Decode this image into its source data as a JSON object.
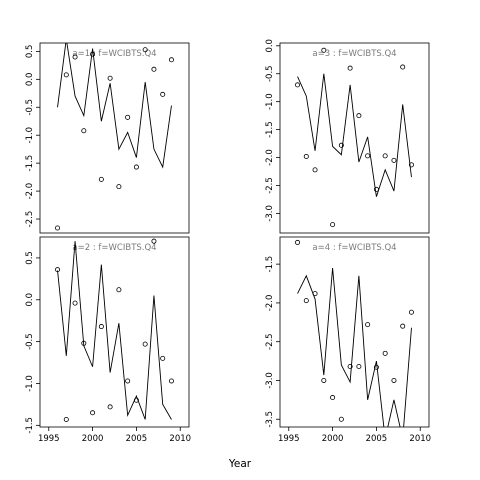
{
  "chart_data": {
    "type": "line",
    "xlabel": "Year",
    "xlim": [
      1994,
      2011
    ],
    "x_ticks": [
      1995,
      2000,
      2005,
      2010
    ],
    "x_tick_labels": [
      "1995",
      "2000",
      "2005",
      "2010"
    ],
    "panels": [
      {
        "title": "a=1  :  f=WCIBTS.Q4",
        "ylim": [
          -2.75,
          0.65
        ],
        "y_ticks": [
          0.5,
          0.0,
          -0.5,
          -1.0,
          -1.5,
          -2.0,
          -2.5
        ],
        "y_tick_labels": [
          "0.5",
          "0.0",
          "-0.5",
          "-1.0",
          "-1.5",
          "-2.0",
          "-2.5"
        ],
        "line": {
          "x": [
            1996,
            1997,
            1998,
            1999,
            2000,
            2001,
            2002,
            2003,
            2004,
            2005,
            2006,
            2007,
            2008,
            2009
          ],
          "y": [
            -0.5,
            0.72,
            -0.3,
            -0.65,
            0.55,
            -0.75,
            -0.07,
            -1.25,
            -0.95,
            -1.4,
            -0.05,
            -1.25,
            -1.57,
            -0.47
          ]
        },
        "points": {
          "x": [
            1996,
            1997,
            1998,
            1999,
            2000,
            2001,
            2002,
            2003,
            2004,
            2005,
            2006,
            2007,
            2008,
            2009
          ],
          "y": [
            -2.66,
            0.08,
            0.4,
            -0.92,
            0.45,
            -1.79,
            0.02,
            -1.92,
            -0.68,
            -1.57,
            0.53,
            0.18,
            -0.27,
            0.35
          ]
        }
      },
      {
        "title": "a=2  :  f=WCIBTS.Q4",
        "ylim": [
          -1.52,
          0.75
        ],
        "y_ticks": [
          0.5,
          0.0,
          -0.5,
          -1.0,
          -1.5
        ],
        "y_tick_labels": [
          "0.5",
          "0.0",
          "-0.5",
          "-1.0",
          "-1.5"
        ],
        "line": {
          "x": [
            1996,
            1997,
            1998,
            1999,
            2000,
            2001,
            2002,
            2003,
            2004,
            2005,
            2006,
            2007,
            2008,
            2009
          ],
          "y": [
            0.35,
            -0.67,
            0.7,
            -0.55,
            -0.8,
            0.42,
            -0.87,
            -0.28,
            -1.38,
            -1.15,
            -1.43,
            0.05,
            -1.25,
            -1.43
          ]
        },
        "points": {
          "x": [
            1996,
            1997,
            1998,
            1999,
            2000,
            2001,
            2002,
            2003,
            2004,
            2005,
            2006,
            2007,
            2008,
            2009
          ],
          "y": [
            0.36,
            -1.43,
            -0.04,
            -0.52,
            -1.35,
            -0.32,
            -1.28,
            0.12,
            -0.97,
            -1.2,
            -0.53,
            0.7,
            -0.7,
            -0.97
          ]
        }
      },
      {
        "title": "a=3  :  f=WCIBTS.Q4",
        "ylim": [
          -3.35,
          0.05
        ],
        "y_ticks": [
          0.0,
          -0.5,
          -1.0,
          -1.5,
          -2.0,
          -2.5,
          -3.0
        ],
        "y_tick_labels": [
          "0.0",
          "-0.5",
          "-1.0",
          "-1.5",
          "-2.0",
          "-2.5",
          "-3.0"
        ],
        "line": {
          "x": [
            1996,
            1997,
            1998,
            1999,
            2000,
            2001,
            2002,
            2003,
            2004,
            2005,
            2006,
            2007,
            2008,
            2009
          ],
          "y": [
            -0.55,
            -0.9,
            -1.88,
            -0.5,
            -1.8,
            -1.95,
            -0.7,
            -2.08,
            -1.63,
            -2.7,
            -2.22,
            -2.6,
            -1.05,
            -2.35
          ]
        },
        "points": {
          "x": [
            1996,
            1997,
            1998,
            1999,
            2000,
            2001,
            2002,
            2003,
            2004,
            2005,
            2006,
            2007,
            2008,
            2009
          ],
          "y": [
            -0.7,
            -1.98,
            -2.22,
            -0.08,
            -3.2,
            -1.78,
            -0.4,
            -1.25,
            -1.97,
            -2.57,
            -1.97,
            -2.05,
            -0.38,
            -2.13
          ]
        }
      },
      {
        "title": "a=4  :  f=WCIBTS.Q4",
        "ylim": [
          -3.6,
          -1.15
        ],
        "y_ticks": [
          -1.5,
          -2.0,
          -2.5,
          -3.0,
          -3.5
        ],
        "y_tick_labels": [
          "-1.5",
          "-2.0",
          "-2.5",
          "-3.0",
          "-3.5"
        ],
        "line": {
          "x": [
            1996,
            1997,
            1998,
            1999,
            2000,
            2001,
            2002,
            2003,
            2004,
            2005,
            2006,
            2007,
            2008,
            2009
          ],
          "y": [
            -1.88,
            -1.65,
            -1.95,
            -2.93,
            -1.55,
            -2.8,
            -3.02,
            -1.65,
            -3.25,
            -2.75,
            -3.75,
            -3.25,
            -3.75,
            -2.32
          ]
        },
        "points": {
          "x": [
            1996,
            1997,
            1998,
            1999,
            2000,
            2001,
            2002,
            2003,
            2004,
            2005,
            2006,
            2007,
            2008,
            2009
          ],
          "y": [
            -1.22,
            -1.97,
            -1.88,
            -3.0,
            -3.22,
            -3.5,
            -2.82,
            -2.82,
            -2.28,
            -2.83,
            -2.65,
            -3.0,
            -2.3,
            -2.12
          ]
        }
      }
    ]
  }
}
